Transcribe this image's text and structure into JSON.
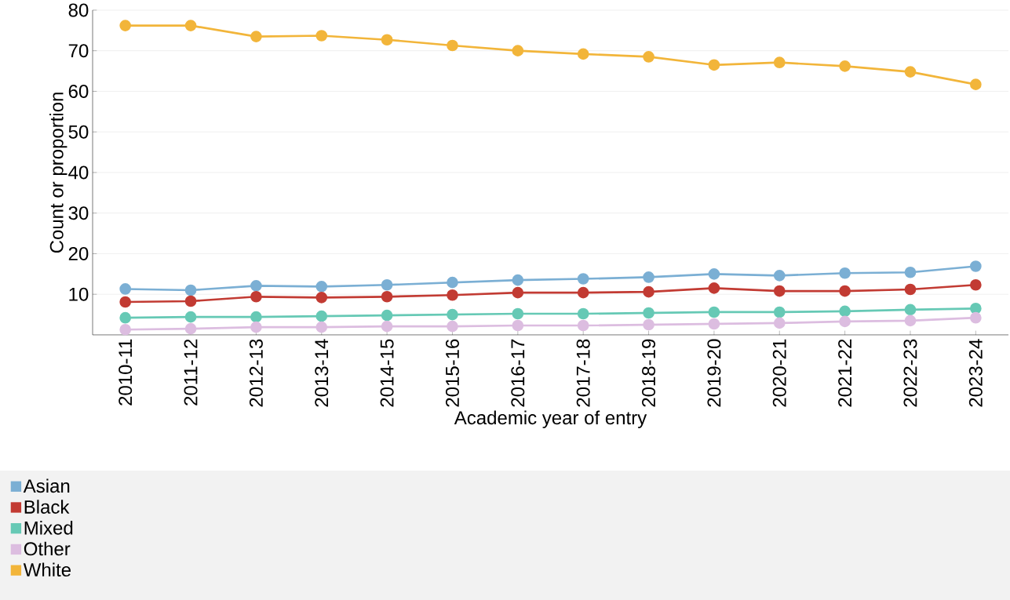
{
  "chart_data": {
    "type": "line",
    "xlabel": "Academic year of entry",
    "ylabel": "Count or proportion",
    "categories": [
      "2010-11",
      "2011-12",
      "2012-13",
      "2013-14",
      "2014-15",
      "2015-16",
      "2016-17",
      "2017-18",
      "2018-19",
      "2019-20",
      "2020-21",
      "2021-22",
      "2022-23",
      "2023-24"
    ],
    "series": [
      {
        "name": "Asian",
        "color": "#7bafd4",
        "values": [
          11.3,
          11.0,
          12.1,
          11.9,
          12.3,
          12.9,
          13.5,
          13.8,
          14.2,
          15.0,
          14.6,
          15.2,
          15.4,
          16.9
        ]
      },
      {
        "name": "Black",
        "color": "#c23b33",
        "values": [
          8.1,
          8.3,
          9.4,
          9.2,
          9.4,
          9.8,
          10.4,
          10.4,
          10.6,
          11.5,
          10.8,
          10.8,
          11.2,
          12.3
        ]
      },
      {
        "name": "Mixed",
        "color": "#66c9b5",
        "values": [
          4.2,
          4.4,
          4.4,
          4.6,
          4.8,
          5.0,
          5.2,
          5.2,
          5.4,
          5.6,
          5.6,
          5.8,
          6.2,
          6.5
        ]
      },
      {
        "name": "Other",
        "color": "#dcbde0",
        "values": [
          1.3,
          1.5,
          1.9,
          1.9,
          2.1,
          2.1,
          2.3,
          2.3,
          2.5,
          2.7,
          2.9,
          3.3,
          3.5,
          4.2
        ]
      },
      {
        "name": "White",
        "color": "#f2b53a",
        "values": [
          76.2,
          76.2,
          73.5,
          73.7,
          72.7,
          71.3,
          70.0,
          69.2,
          68.5,
          66.5,
          67.1,
          66.2,
          64.8,
          61.7
        ]
      }
    ],
    "ylim": [
      0,
      80
    ],
    "yticks": [
      10,
      20,
      30,
      40,
      50,
      60,
      70,
      80
    ],
    "grid": "y",
    "legend": "bottom",
    "marker": "circle",
    "line_style": "solid"
  }
}
